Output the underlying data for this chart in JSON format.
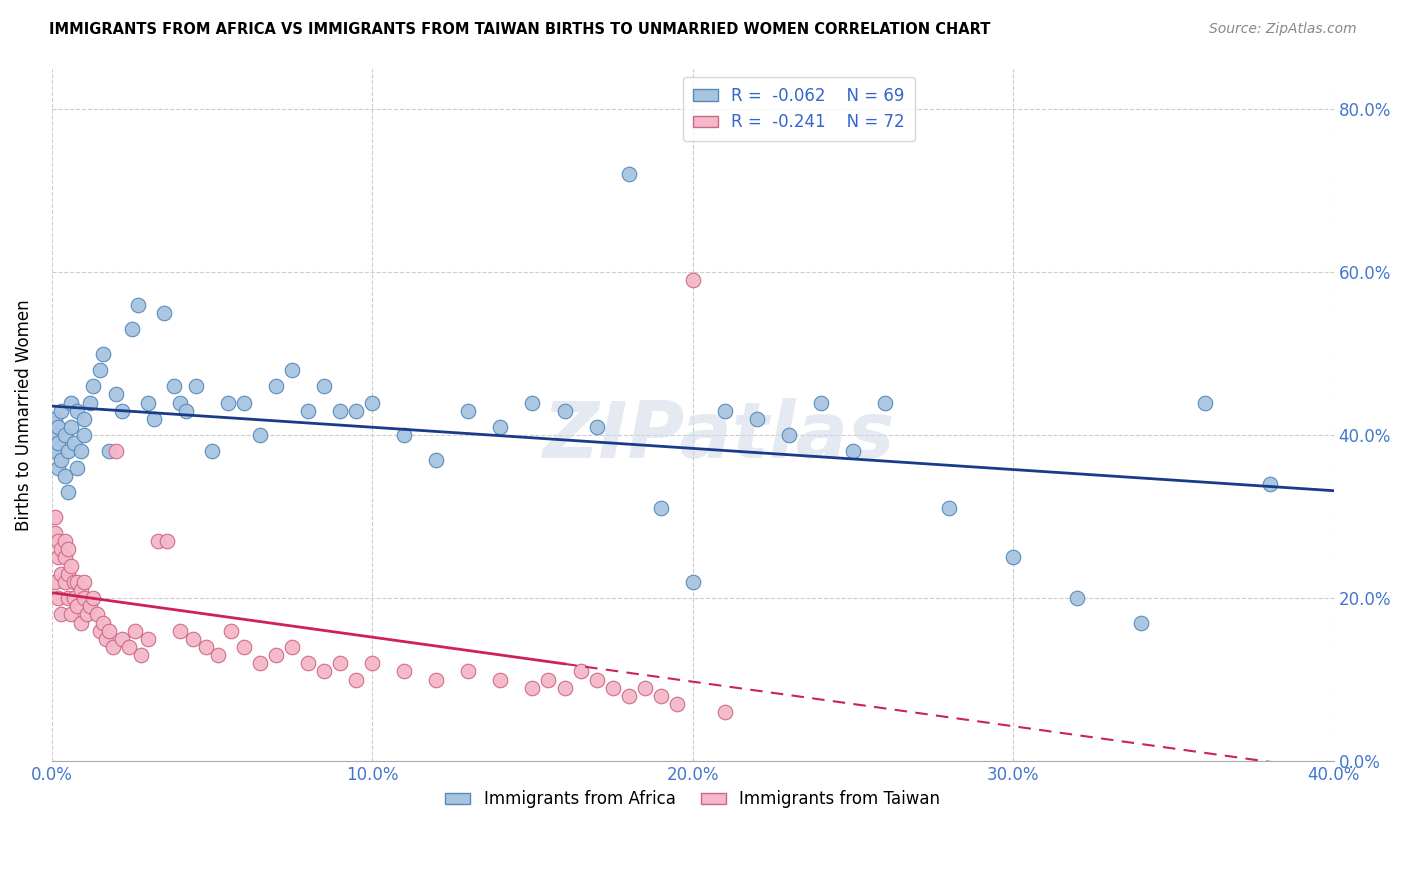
{
  "title": "IMMIGRANTS FROM AFRICA VS IMMIGRANTS FROM TAIWAN BIRTHS TO UNMARRIED WOMEN CORRELATION CHART",
  "source": "Source: ZipAtlas.com",
  "ylabel": "Births to Unmarried Women",
  "xlim": [
    0.0,
    0.4
  ],
  "ylim": [
    0.0,
    0.85
  ],
  "africa_color": "#a8c4e0",
  "africa_edge": "#5588bb",
  "taiwan_color": "#f4b8c8",
  "taiwan_edge": "#cc6688",
  "trendline_africa_color": "#1a3a8a",
  "trendline_taiwan_color": "#cc2255",
  "watermark": "ZIPatlas",
  "legend_bottom_africa": "Immigrants from Africa",
  "legend_bottom_taiwan": "Immigrants from Taiwan",
  "africa_x": [
    0.001,
    0.001,
    0.001,
    0.002,
    0.002,
    0.002,
    0.003,
    0.003,
    0.004,
    0.004,
    0.005,
    0.005,
    0.006,
    0.006,
    0.007,
    0.008,
    0.008,
    0.009,
    0.01,
    0.01,
    0.012,
    0.013,
    0.015,
    0.016,
    0.018,
    0.02,
    0.022,
    0.025,
    0.027,
    0.03,
    0.032,
    0.035,
    0.038,
    0.04,
    0.042,
    0.045,
    0.05,
    0.055,
    0.06,
    0.065,
    0.07,
    0.075,
    0.08,
    0.085,
    0.09,
    0.095,
    0.1,
    0.11,
    0.12,
    0.13,
    0.14,
    0.15,
    0.16,
    0.17,
    0.18,
    0.19,
    0.2,
    0.21,
    0.22,
    0.23,
    0.24,
    0.25,
    0.26,
    0.28,
    0.3,
    0.32,
    0.34,
    0.36,
    0.38
  ],
  "africa_y": [
    0.38,
    0.4,
    0.42,
    0.36,
    0.39,
    0.41,
    0.37,
    0.43,
    0.35,
    0.4,
    0.33,
    0.38,
    0.41,
    0.44,
    0.39,
    0.36,
    0.43,
    0.38,
    0.42,
    0.4,
    0.44,
    0.46,
    0.48,
    0.5,
    0.38,
    0.45,
    0.43,
    0.53,
    0.56,
    0.44,
    0.42,
    0.55,
    0.46,
    0.44,
    0.43,
    0.46,
    0.38,
    0.44,
    0.44,
    0.4,
    0.46,
    0.48,
    0.43,
    0.46,
    0.43,
    0.43,
    0.44,
    0.4,
    0.37,
    0.43,
    0.41,
    0.44,
    0.43,
    0.41,
    0.72,
    0.31,
    0.22,
    0.43,
    0.42,
    0.4,
    0.44,
    0.38,
    0.44,
    0.31,
    0.25,
    0.2,
    0.17,
    0.44,
    0.34
  ],
  "taiwan_x": [
    0.001,
    0.001,
    0.001,
    0.002,
    0.002,
    0.002,
    0.003,
    0.003,
    0.003,
    0.004,
    0.004,
    0.004,
    0.005,
    0.005,
    0.005,
    0.006,
    0.006,
    0.007,
    0.007,
    0.008,
    0.008,
    0.009,
    0.009,
    0.01,
    0.01,
    0.011,
    0.012,
    0.013,
    0.014,
    0.015,
    0.016,
    0.017,
    0.018,
    0.019,
    0.02,
    0.022,
    0.024,
    0.026,
    0.028,
    0.03,
    0.033,
    0.036,
    0.04,
    0.044,
    0.048,
    0.052,
    0.056,
    0.06,
    0.065,
    0.07,
    0.075,
    0.08,
    0.085,
    0.09,
    0.095,
    0.1,
    0.11,
    0.12,
    0.13,
    0.14,
    0.15,
    0.155,
    0.16,
    0.165,
    0.17,
    0.175,
    0.18,
    0.185,
    0.19,
    0.195,
    0.2,
    0.21
  ],
  "taiwan_y": [
    0.22,
    0.28,
    0.3,
    0.2,
    0.25,
    0.27,
    0.18,
    0.23,
    0.26,
    0.22,
    0.25,
    0.27,
    0.2,
    0.23,
    0.26,
    0.18,
    0.24,
    0.2,
    0.22,
    0.19,
    0.22,
    0.17,
    0.21,
    0.2,
    0.22,
    0.18,
    0.19,
    0.2,
    0.18,
    0.16,
    0.17,
    0.15,
    0.16,
    0.14,
    0.38,
    0.15,
    0.14,
    0.16,
    0.13,
    0.15,
    0.27,
    0.27,
    0.16,
    0.15,
    0.14,
    0.13,
    0.16,
    0.14,
    0.12,
    0.13,
    0.14,
    0.12,
    0.11,
    0.12,
    0.1,
    0.12,
    0.11,
    0.1,
    0.11,
    0.1,
    0.09,
    0.1,
    0.09,
    0.11,
    0.1,
    0.09,
    0.08,
    0.09,
    0.08,
    0.07,
    0.59,
    0.06
  ]
}
